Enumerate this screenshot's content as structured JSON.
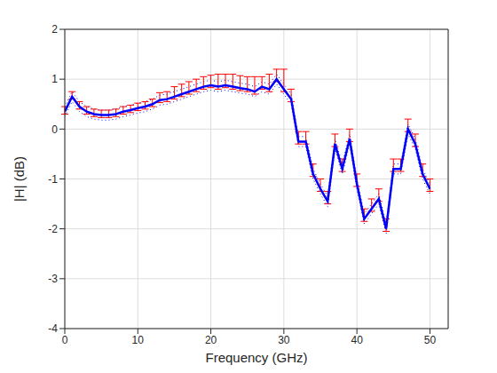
{
  "chart_data": {
    "type": "line",
    "x_label": "Frequency (GHz)",
    "y_label": "|H| (dB)",
    "x": [
      0,
      1,
      2,
      3,
      4,
      5,
      6,
      7,
      8,
      9,
      10,
      11,
      12,
      13,
      14,
      15,
      16,
      17,
      18,
      19,
      20,
      21,
      22,
      23,
      24,
      25,
      26,
      27,
      28,
      29,
      30,
      31,
      32,
      33,
      34,
      35,
      36,
      37,
      38,
      39,
      40,
      41,
      42,
      43,
      44,
      45,
      46,
      47,
      48,
      49,
      50
    ],
    "xlim": [
      0,
      52.5
    ],
    "xticks": [
      0,
      10,
      20,
      30,
      40,
      50
    ],
    "ylim": [
      -4,
      2
    ],
    "yticks": [
      -4,
      -3,
      -2,
      -1,
      0,
      1,
      2
    ],
    "grid": true,
    "series": [
      {
        "color": "#0000ff",
        "line_style": "solid",
        "values": [
          0.35,
          0.65,
          0.45,
          0.35,
          0.3,
          0.28,
          0.28,
          0.3,
          0.35,
          0.38,
          0.42,
          0.45,
          0.5,
          0.58,
          0.6,
          0.65,
          0.7,
          0.75,
          0.8,
          0.85,
          0.88,
          0.85,
          0.88,
          0.85,
          0.82,
          0.8,
          0.75,
          0.85,
          0.8,
          1.0,
          0.8,
          0.6,
          -0.25,
          -0.25,
          -0.9,
          -1.2,
          -1.45,
          -0.3,
          -0.8,
          -0.2,
          -1.1,
          -1.8,
          -1.6,
          -1.4,
          -2.0,
          -0.8,
          -0.8,
          0.0,
          -0.3,
          -0.9,
          -1.2
        ],
        "error_color": "#ff0000",
        "error_minus": [
          0.05,
          0.05,
          0.05,
          0.05,
          0.05,
          0.05,
          0.05,
          0.05,
          0.05,
          0.05,
          0.05,
          0.05,
          0.05,
          0.05,
          0.05,
          0.05,
          0.05,
          0.05,
          0.05,
          0.05,
          0.05,
          0.05,
          0.05,
          0.05,
          0.05,
          0.05,
          0.05,
          0.05,
          0.05,
          0.05,
          0.05,
          0.05,
          0.05,
          0.05,
          0.05,
          0.05,
          0.05,
          0.05,
          0.05,
          0.05,
          0.05,
          0.05,
          0.05,
          0.05,
          0.05,
          0.05,
          0.05,
          0.05,
          0.05,
          0.05,
          0.05
        ],
        "error_plus": [
          0.1,
          0.1,
          0.1,
          0.1,
          0.1,
          0.1,
          0.1,
          0.1,
          0.1,
          0.1,
          0.1,
          0.1,
          0.1,
          0.15,
          0.15,
          0.2,
          0.2,
          0.2,
          0.2,
          0.2,
          0.2,
          0.25,
          0.22,
          0.25,
          0.25,
          0.25,
          0.3,
          0.2,
          0.3,
          0.2,
          0.4,
          0.2,
          0.2,
          0.2,
          0.2,
          0.2,
          0.2,
          0.2,
          0.2,
          0.2,
          0.2,
          0.2,
          0.2,
          0.2,
          0.2,
          0.2,
          0.2,
          0.2,
          0.2,
          0.2,
          0.2
        ]
      },
      {
        "color": "#0000ff",
        "line_style": "dotted",
        "values": [
          0.45,
          0.75,
          0.55,
          0.45,
          0.4,
          0.38,
          0.38,
          0.4,
          0.45,
          0.48,
          0.52,
          0.55,
          0.6,
          0.68,
          0.7,
          0.75,
          0.8,
          0.85,
          0.9,
          0.95,
          0.98,
          0.95,
          0.98,
          0.95,
          0.92,
          0.9,
          0.85,
          0.95,
          0.9,
          1.1,
          0.9,
          0.7,
          -0.15,
          -0.15,
          -0.8,
          -1.1,
          -1.35,
          -0.2,
          -0.7,
          -0.1,
          -1.0,
          -1.7,
          -1.5,
          -1.3,
          -1.9,
          -0.7,
          -0.7,
          0.1,
          -0.2,
          -0.8,
          -1.1
        ]
      },
      {
        "color": "#0000ff",
        "line_style": "dotted",
        "values": [
          0.25,
          0.55,
          0.35,
          0.25,
          0.2,
          0.18,
          0.18,
          0.2,
          0.25,
          0.28,
          0.32,
          0.35,
          0.4,
          0.48,
          0.5,
          0.55,
          0.6,
          0.65,
          0.7,
          0.75,
          0.78,
          0.75,
          0.78,
          0.75,
          0.72,
          0.7,
          0.65,
          0.75,
          0.7,
          0.9,
          0.7,
          0.5,
          -0.35,
          -0.35,
          -1.0,
          -1.3,
          -1.55,
          -0.4,
          -0.9,
          -0.3,
          -1.2,
          -1.9,
          -1.7,
          -1.5,
          -2.1,
          -0.9,
          -0.9,
          -0.1,
          -0.4,
          -1.0,
          -1.3
        ]
      }
    ]
  }
}
